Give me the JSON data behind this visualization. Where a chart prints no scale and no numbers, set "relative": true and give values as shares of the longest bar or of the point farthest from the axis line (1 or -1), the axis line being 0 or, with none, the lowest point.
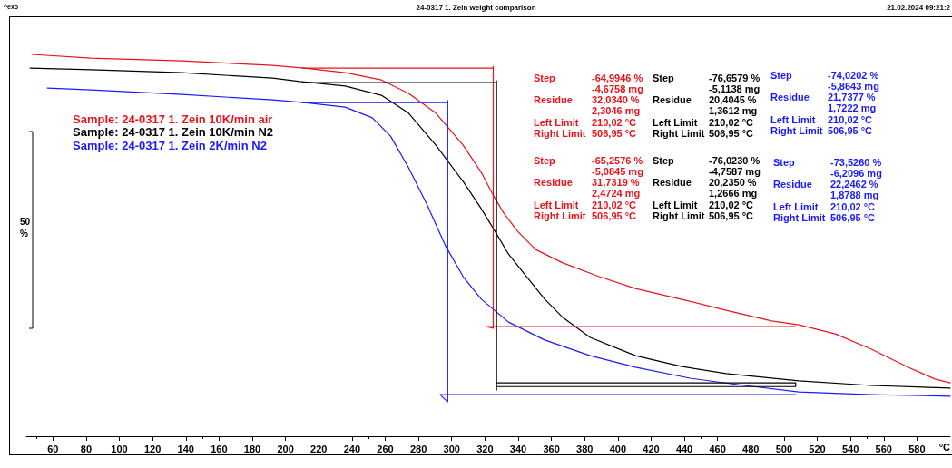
{
  "chart_data": {
    "type": "line",
    "title": "24-0317 1. Zein weight comparison",
    "xlabel": "°C",
    "ylabel": "50 %",
    "relative": true,
    "marker": "none",
    "line_style": "solid",
    "grid": false,
    "legend": "top left",
    "xlim": [
      44,
      600
    ],
    "xticks": [
      60,
      80,
      100,
      120,
      140,
      160,
      180,
      200,
      220,
      240,
      260,
      280,
      300,
      320,
      340,
      360,
      380,
      400,
      420,
      440,
      460,
      480,
      500,
      520,
      540,
      560,
      580
    ],
    "annotations": [
      "^exo",
      "21.02.2024 09:21:2",
      "Step\t-64,9946 %\n\t-4,6758 mg\nResidue\t32,0340 %\n\t2,3046 mg\nLeft Limit\t210,02 °C\nRight Limit\t506,95 °C",
      "Step\t-76,6579 %\n\t-5,1138 mg\nResidue\t20,4045 %\n\t1,3612 mg\nLeft Limit\t210,02 °C\nRight Limit\t506,95 °C",
      "Step\t-74,0202 %\n\t-5,8643 mg\nResidue\t21,7377 %\n\t1,7222 mg\nLeft Limit\t210,02 °C\nRight Limit\t506,95 °C",
      "Step\t-65,2576 %\n\t-5,0845 mg\nResidue\t31,7319 %\n\t2,4724 mg\nLeft Limit\t210,02 °C\nRight Limit\t506,95 °C",
      "Step\t-76,0230 %\n\t-4,7587 mg\nResidue\t20,2350 %\n\t1,2666 mg\nLeft Limit\t210,02 °C\nRight Limit\t506,95 °C",
      "Step\t-73,5260 %\n\t-6,2096 mg\nResidue\t22,2462 %\n\t1,8788 mg\nLeft Limit\t210,02 °C\nRight Limit\t506,95 °C"
    ],
    "series": [
      {
        "name": "Sample: 24-0317 1. Zein 10K/min air",
        "color": "#e8141c",
        "x": [
          47.4,
          82.9,
          137.6,
          192.2,
          211.3,
          235.9,
          257.7,
          274.1,
          290.5,
          306.9,
          317.8,
          324.9,
          331.4,
          339.6,
          350.5,
          366.9,
          388.8,
          410.6,
          437.9,
          465.2,
          492.6,
          508.9,
          530.8,
          552.6,
          574.5,
          590.9,
          600
        ],
        "values": [
          1.0,
          0.99,
          0.983,
          0.971,
          0.964,
          0.952,
          0.933,
          0.898,
          0.846,
          0.762,
          0.691,
          0.632,
          0.584,
          0.537,
          0.489,
          0.454,
          0.418,
          0.387,
          0.359,
          0.33,
          0.302,
          0.292,
          0.268,
          0.228,
          0.181,
          0.15,
          0.14
        ]
      },
      {
        "name": "Sample: 24-0317 1. Zein 10K/min N2",
        "color": "#000000",
        "x": [
          46.3,
          82.9,
          137.6,
          192.2,
          208.6,
          235.9,
          257.7,
          274.1,
          290.5,
          306.9,
          317.8,
          326.0,
          334.2,
          345.1,
          356.0,
          366.9,
          383.3,
          410.6,
          437.9,
          465.2,
          508.9,
          552.6,
          600
        ],
        "values": [
          0.964,
          0.96,
          0.952,
          0.938,
          0.929,
          0.917,
          0.893,
          0.846,
          0.762,
          0.667,
          0.596,
          0.537,
          0.477,
          0.418,
          0.359,
          0.311,
          0.259,
          0.211,
          0.183,
          0.164,
          0.145,
          0.133,
          0.126
        ]
      },
      {
        "name": "Sample: 24-0317 1. Zein 2K/min N2",
        "color": "#1a1aff",
        "x": [
          56.7,
          82.9,
          137.6,
          192.2,
          211.3,
          235.9,
          252.2,
          263.2,
          274.1,
          285.0,
          296.0,
          306.9,
          317.8,
          334.2,
          356.0,
          383.3,
          410.6,
          443.4,
          476.2,
          508.9,
          552.6,
          600
        ],
        "values": [
          0.912,
          0.907,
          0.895,
          0.881,
          0.874,
          0.862,
          0.834,
          0.786,
          0.703,
          0.608,
          0.501,
          0.418,
          0.359,
          0.299,
          0.252,
          0.211,
          0.181,
          0.152,
          0.133,
          0.116,
          0.109,
          0.105
        ]
      },
      {
        "color": "#e8141c",
        "x": [
          210,
          325,
          325,
          325,
          321,
          507
        ],
        "values": [
          0.964,
          0.964,
          0.969,
          0.283,
          0.287,
          0.287
        ]
      },
      {
        "color": "#000000",
        "x": [
          210,
          327,
          327,
          327,
          327,
          507,
          507,
          327
        ],
        "values": [
          0.926,
          0.926,
          0.931,
          0.121,
          0.14,
          0.14,
          0.13,
          0.13
        ]
      },
      {
        "color": "#1a1aff",
        "x": [
          210,
          297.6,
          297.6,
          297.6,
          293,
          507
        ],
        "values": [
          0.874,
          0.874,
          0.879,
          0.09,
          0.109,
          0.109
        ]
      }
    ]
  }
}
